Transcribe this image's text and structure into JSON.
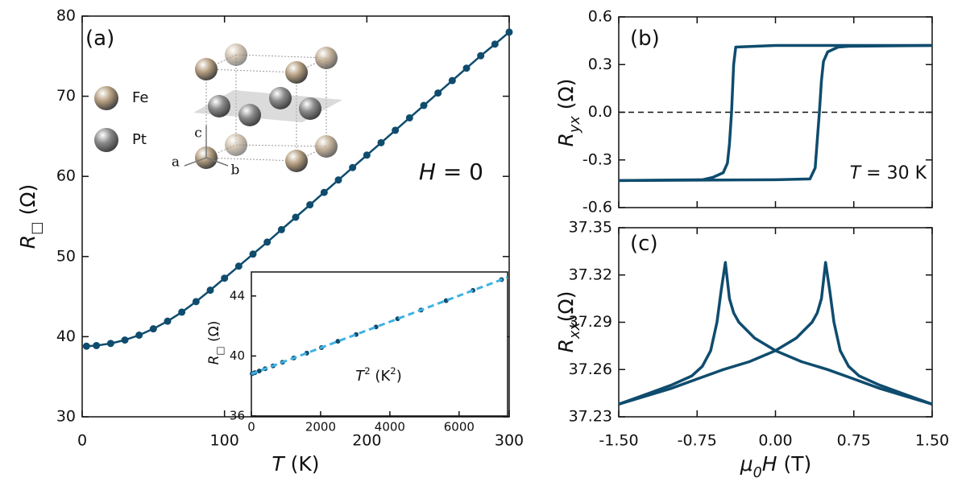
{
  "chart_data": [
    {
      "type": "scatter",
      "xlabel": [
        {
          "text": "T",
          "style": "italic"
        },
        {
          "text": " (K)"
        }
      ],
      "ylabel": [
        {
          "text": "R",
          "style": "italic"
        },
        {
          "text": "□",
          "style": "sub"
        },
        {
          "text": " (Ω)"
        }
      ],
      "xlim": [
        0,
        300
      ],
      "xticks": [
        0,
        100,
        200,
        300
      ],
      "ylim": [
        30,
        80
      ],
      "yticks": [
        30,
        40,
        50,
        60,
        70,
        80
      ],
      "annotations": [
        [
          {
            "text": "(a)"
          }
        ],
        [
          {
            "text": "H",
            "style": "italic"
          },
          {
            "text": " = 0"
          }
        ]
      ],
      "series": [
        {
          "color": "#0f4c6e",
          "style": "markers-line",
          "x": [
            3,
            10,
            20,
            30,
            40,
            50,
            60,
            70,
            80,
            90,
            100,
            110,
            120,
            130,
            140,
            150,
            160,
            170,
            180,
            190,
            200,
            210,
            220,
            230,
            240,
            250,
            260,
            270,
            280,
            290,
            300
          ],
          "values": [
            38.81,
            38.89,
            39.15,
            39.58,
            40.19,
            40.98,
            41.93,
            43.06,
            44.37,
            45.8,
            47.3,
            48.8,
            50.3,
            51.8,
            53.35,
            54.9,
            56.45,
            58.0,
            59.55,
            61.1,
            62.65,
            64.2,
            65.75,
            67.3,
            68.85,
            70.4,
            71.95,
            73.5,
            75.05,
            76.5,
            78.0
          ]
        }
      ],
      "structure": {
        "atoms": [
          {
            "name": "Fe",
            "color": "#b59e80"
          },
          {
            "name": "Pt",
            "color": "#8a8a8a"
          }
        ],
        "axes": [
          "a",
          "b",
          "c"
        ]
      }
    },
    {
      "type": "scatter",
      "xlabel": [
        {
          "text": "T",
          "style": "italic"
        },
        {
          "text": "2",
          "style": "sup"
        },
        {
          "text": " (K"
        },
        {
          "text": "2",
          "style": "sup"
        },
        {
          "text": ")"
        }
      ],
      "ylabel": [
        {
          "text": "R",
          "style": "italic"
        },
        {
          "text": "□",
          "style": "sub"
        },
        {
          "text": " (Ω)"
        }
      ],
      "xlim": [
        0,
        7400
      ],
      "xticks": [
        0,
        2000,
        4000,
        6000
      ],
      "ylim": [
        36,
        45.6
      ],
      "yticks": [
        36,
        40,
        44
      ],
      "series": [
        {
          "color": "#0f4c6e",
          "style": "markers",
          "x": [
            25,
            100,
            225,
            400,
            625,
            900,
            1225,
            1600,
            2025,
            2500,
            3025,
            3600,
            4225,
            4900,
            5625,
            6400,
            7225
          ],
          "values": [
            38.82,
            38.89,
            39.0,
            39.15,
            39.34,
            39.58,
            39.87,
            40.19,
            40.56,
            40.98,
            41.43,
            41.93,
            42.48,
            43.06,
            43.69,
            44.37,
            45.09
          ]
        },
        {
          "color": "#3fb2e3",
          "style": "dashed",
          "x": [
            0,
            7400
          ],
          "values": [
            38.8,
            45.24
          ]
        }
      ]
    },
    {
      "type": "line",
      "ylabel": [
        {
          "text": "R",
          "style": "italic"
        },
        {
          "text": "yx",
          "style": "italic-sub"
        },
        {
          "text": " (Ω)"
        }
      ],
      "xlim": [
        -1.5,
        1.5
      ],
      "xticks": [
        -1.5,
        -0.75,
        0,
        0.75,
        1.5
      ],
      "xtick_labels": false,
      "ylim": [
        -0.6,
        0.6
      ],
      "yticks": [
        -0.6,
        -0.3,
        {
          "value": 0,
          "label": "0.0"
        },
        0.3,
        0.6
      ],
      "reference_line": 0,
      "annotations": [
        [
          {
            "text": "(b)"
          }
        ],
        [
          {
            "text": "T",
            "style": "italic"
          },
          {
            "text": " = 30 K"
          }
        ]
      ],
      "series": [
        {
          "color": "#0f4c6e",
          "style": "line",
          "x": [
            1.5,
            0,
            -0.38,
            -0.4,
            -0.42,
            -0.44,
            -0.46,
            -0.5,
            -0.6,
            -0.7,
            -1.5
          ],
          "values": [
            0.42,
            0.42,
            0.41,
            0.3,
            0.0,
            -0.2,
            -0.32,
            -0.38,
            -0.41,
            -0.425,
            -0.43
          ]
        },
        {
          "color": "#0f4c6e",
          "style": "line",
          "x": [
            -1.5,
            0,
            0.33,
            0.38,
            0.42,
            0.44,
            0.46,
            0.5,
            0.6,
            0.7,
            1.5
          ],
          "values": [
            -0.43,
            -0.425,
            -0.42,
            -0.35,
            0.0,
            0.2,
            0.32,
            0.38,
            0.41,
            0.415,
            0.42
          ]
        }
      ]
    },
    {
      "type": "line",
      "xlabel": [
        {
          "text": "μ",
          "style": "italic"
        },
        {
          "text": "0",
          "style": "italic-sub"
        },
        {
          "text": "H",
          "style": "italic"
        },
        {
          "text": " (T)"
        }
      ],
      "ylabel": [
        {
          "text": "R",
          "style": "italic"
        },
        {
          "text": "xx",
          "style": "italic-sub"
        },
        {
          "text": "(Ω)"
        }
      ],
      "xlim": [
        -1.5,
        1.5
      ],
      "xticks": [
        {
          "value": -1.5,
          "label": "-1.50"
        },
        -0.75,
        {
          "value": 0,
          "label": "0.00"
        },
        0.75,
        {
          "value": 1.5,
          "label": "1.50"
        }
      ],
      "ylim": [
        37.23,
        37.35
      ],
      "yticks": [
        37.23,
        37.26,
        37.29,
        37.32,
        37.35
      ],
      "annotations": [
        [
          {
            "text": "(c)"
          }
        ]
      ],
      "series": [
        {
          "color": "#0f4c6e",
          "style": "line",
          "x": [
            1.5,
            1.0,
            0.75,
            0.5,
            0.25,
            0,
            -0.2,
            -0.35,
            -0.4,
            -0.44,
            -0.48,
            -0.52,
            -0.56,
            -0.62,
            -0.7,
            -0.8,
            -1.0,
            -1.25,
            -1.5
          ],
          "values": [
            37.238,
            37.248,
            37.254,
            37.26,
            37.265,
            37.272,
            37.28,
            37.29,
            37.296,
            37.305,
            37.328,
            37.31,
            37.29,
            37.272,
            37.262,
            37.256,
            37.25,
            37.244,
            37.238
          ]
        },
        {
          "color": "#0f4c6e",
          "style": "line",
          "x": [
            -1.5,
            -1.0,
            -0.75,
            -0.5,
            -0.25,
            0,
            0.2,
            0.35,
            0.4,
            0.44,
            0.48,
            0.52,
            0.56,
            0.62,
            0.7,
            0.8,
            1.0,
            1.25,
            1.5
          ],
          "values": [
            37.238,
            37.248,
            37.254,
            37.26,
            37.265,
            37.272,
            37.28,
            37.29,
            37.296,
            37.305,
            37.328,
            37.31,
            37.29,
            37.272,
            37.262,
            37.256,
            37.25,
            37.244,
            37.238
          ]
        }
      ]
    }
  ]
}
